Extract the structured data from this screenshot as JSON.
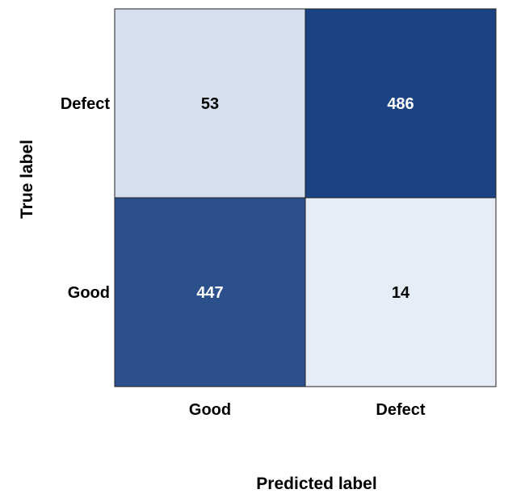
{
  "chart_data": {
    "type": "heatmap",
    "xlabel": "Predicted label",
    "ylabel": "True label",
    "x_categories": [
      "Good",
      "Defect"
    ],
    "y_categories": [
      "Defect",
      "Good"
    ],
    "values": [
      [
        53,
        486
      ],
      [
        447,
        14
      ]
    ],
    "colors": {
      "low": "#e6edf7",
      "high": "#1b4282",
      "text_dark": "#000000",
      "text_light": "#ffffff"
    },
    "grid": false,
    "legend": "none"
  }
}
